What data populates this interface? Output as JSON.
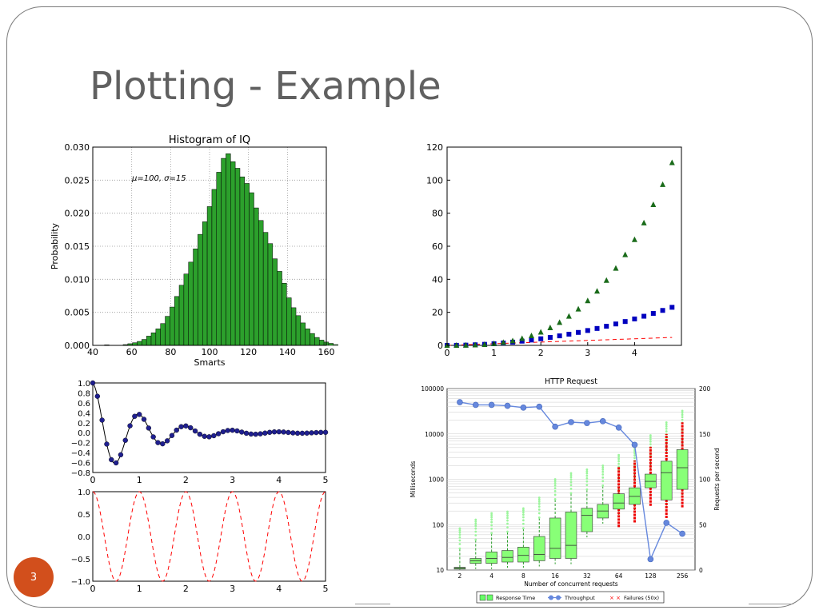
{
  "slide": {
    "title": "Plotting - Example",
    "page_number": "3",
    "accent_color": "#d24f1c"
  },
  "chart_data": [
    {
      "type": "bar",
      "title": "Histogram of IQ",
      "xlabel": "Smarts",
      "ylabel": "Probability",
      "annotation": "μ=100, σ=15",
      "xlim": [
        40,
        160
      ],
      "ylim": [
        0,
        0.03
      ],
      "grid": true,
      "bar_color": "#2ca02c",
      "bin_width": 2.4,
      "bin_start": 46,
      "values": [
        8e-05,
        0,
        0,
        0,
        0.00012,
        0.00025,
        0.0004,
        0.0006,
        0.0009,
        0.0014,
        0.0019,
        0.0025,
        0.0033,
        0.0044,
        0.0058,
        0.0074,
        0.0091,
        0.0108,
        0.0126,
        0.0146,
        0.0168,
        0.0187,
        0.021,
        0.0236,
        0.0262,
        0.0283,
        0.029,
        0.0278,
        0.0268,
        0.0255,
        0.0245,
        0.0231,
        0.0208,
        0.0189,
        0.0171,
        0.0154,
        0.0131,
        0.0112,
        0.0094,
        0.0072,
        0.0057,
        0.0045,
        0.0034,
        0.0025,
        0.0018,
        0.0012,
        0.0008,
        0.0005,
        0.0003,
        0.00012
      ],
      "xticks": [
        40,
        60,
        80,
        100,
        120,
        140,
        160
      ],
      "yticks": [
        "0.000",
        "0.005",
        "0.010",
        "0.015",
        "0.020",
        "0.025",
        "0.030"
      ]
    },
    {
      "type": "scatter",
      "xlim": [
        0,
        5
      ],
      "ylim": [
        0,
        120
      ],
      "xticks": [
        0,
        1,
        2,
        3,
        4
      ],
      "yticks": [
        0,
        20,
        40,
        60,
        80,
        100,
        120
      ],
      "series": [
        {
          "kind": "dashed-line",
          "color": "#ff0000",
          "x": [
            0,
            0.2,
            0.4,
            0.6,
            0.8,
            1.0,
            1.2,
            1.4,
            1.6,
            1.8,
            2.0,
            2.2,
            2.4,
            2.6,
            2.8,
            3.0,
            3.2,
            3.4,
            3.6,
            3.8,
            4.0,
            4.2,
            4.4,
            4.6,
            4.8
          ],
          "y": [
            0,
            0.2,
            0.4,
            0.6,
            0.8,
            1.0,
            1.2,
            1.4,
            1.6,
            1.8,
            2.0,
            2.2,
            2.4,
            2.6,
            2.8,
            3.0,
            3.2,
            3.4,
            3.6,
            3.8,
            4.0,
            4.2,
            4.4,
            4.6,
            4.8
          ]
        },
        {
          "kind": "square",
          "color": "#0000bf",
          "x": [
            0,
            0.2,
            0.4,
            0.6,
            0.8,
            1.0,
            1.2,
            1.4,
            1.6,
            1.8,
            2.0,
            2.2,
            2.4,
            2.6,
            2.8,
            3.0,
            3.2,
            3.4,
            3.6,
            3.8,
            4.0,
            4.2,
            4.4,
            4.6,
            4.8
          ],
          "y": [
            0,
            0.04,
            0.16,
            0.36,
            0.64,
            1.0,
            1.44,
            1.96,
            2.56,
            3.24,
            4.0,
            4.84,
            5.76,
            6.76,
            7.84,
            9.0,
            10.24,
            11.56,
            12.96,
            14.44,
            16.0,
            17.64,
            19.36,
            21.16,
            23.04
          ]
        },
        {
          "kind": "triangle",
          "color": "#1a6b1a",
          "x": [
            0,
            0.2,
            0.4,
            0.6,
            0.8,
            1.0,
            1.2,
            1.4,
            1.6,
            1.8,
            2.0,
            2.2,
            2.4,
            2.6,
            2.8,
            3.0,
            3.2,
            3.4,
            3.6,
            3.8,
            4.0,
            4.2,
            4.4,
            4.6,
            4.8
          ],
          "y": [
            0,
            0.008,
            0.064,
            0.216,
            0.512,
            1.0,
            1.728,
            2.744,
            4.096,
            5.832,
            8.0,
            10.648,
            13.824,
            17.576,
            21.952,
            27.0,
            32.768,
            39.304,
            46.656,
            54.872,
            64.0,
            74.088,
            85.184,
            97.336,
            110.592
          ]
        }
      ]
    },
    {
      "type": "line",
      "xlim": [
        0,
        5
      ],
      "ylim": [
        -0.8,
        1.0
      ],
      "xticks": [
        0,
        1,
        2,
        3,
        4,
        5
      ],
      "yticks": [
        "1.0",
        "0.8",
        "0.6",
        "0.4",
        "0.2",
        "0.0",
        "−0.2",
        "−0.4",
        "−0.6",
        "−0.8"
      ],
      "function": "exp(-t)*cos(2*pi*t)",
      "marker_step": 0.1,
      "marker_color": "#1f1f8f"
    },
    {
      "type": "line",
      "xlim": [
        0,
        5
      ],
      "ylim": [
        -1.0,
        1.0
      ],
      "xticks": [
        0,
        1,
        2,
        3,
        4,
        5
      ],
      "yticks": [
        "1.0",
        "0.5",
        "0.0",
        "−0.5",
        "−1.0"
      ],
      "function": "cos(2*pi*t)",
      "line_color": "#ff0000"
    },
    {
      "type": "box",
      "title": "HTTP Request",
      "xlabel": "Number of concurrent requests",
      "ylabel": "Milliseconds",
      "y2label": "Requests per second",
      "y_scale": "log",
      "ylim": [
        10,
        100000
      ],
      "yticks": [
        "100000",
        "10000",
        "1000",
        "100",
        "10"
      ],
      "y2lim": [
        0,
        200
      ],
      "y2ticks": [
        "200",
        "150",
        "100",
        "50",
        "0"
      ],
      "categories": [
        "2",
        "",
        "4",
        "",
        "8",
        "",
        "16",
        "",
        "32",
        "",
        "64",
        "",
        "128",
        "",
        "256"
      ],
      "tick_labels": [
        "2",
        "4",
        "8",
        "16",
        "32",
        "64",
        "128",
        "256"
      ],
      "boxes": [
        {
          "q1": 10.5,
          "med": 11,
          "q3": 11.5
        },
        {
          "q1": 14,
          "med": 16,
          "q3": 18
        },
        {
          "q1": 14,
          "med": 18,
          "q3": 25
        },
        {
          "q1": 15,
          "med": 19,
          "q3": 27
        },
        {
          "q1": 15,
          "med": 21,
          "q3": 32
        },
        {
          "q1": 16,
          "med": 22,
          "q3": 55
        },
        {
          "q1": 18,
          "med": 30,
          "q3": 140
        },
        {
          "q1": 18,
          "med": 35,
          "q3": 190
        },
        {
          "q1": 70,
          "med": 160,
          "q3": 230
        },
        {
          "q1": 140,
          "med": 200,
          "q3": 280
        },
        {
          "q1": 220,
          "med": 300,
          "q3": 480
        },
        {
          "q1": 280,
          "med": 420,
          "q3": 650
        },
        {
          "q1": 650,
          "med": 900,
          "q3": 1300
        },
        {
          "q1": 350,
          "med": 1400,
          "q3": 2500
        },
        {
          "q1": 600,
          "med": 1800,
          "q3": 4500
        }
      ],
      "throughput": [
        185,
        182,
        182,
        181,
        179,
        180,
        158,
        163,
        162,
        164,
        157,
        138,
        12,
        52,
        40
      ],
      "legend": [
        {
          "label": "Response Time",
          "color": "#66ff66"
        },
        {
          "label": "Throughput",
          "color": "#6688dd"
        },
        {
          "label": "Failures (50x)",
          "color": "#ff0000"
        }
      ]
    }
  ]
}
